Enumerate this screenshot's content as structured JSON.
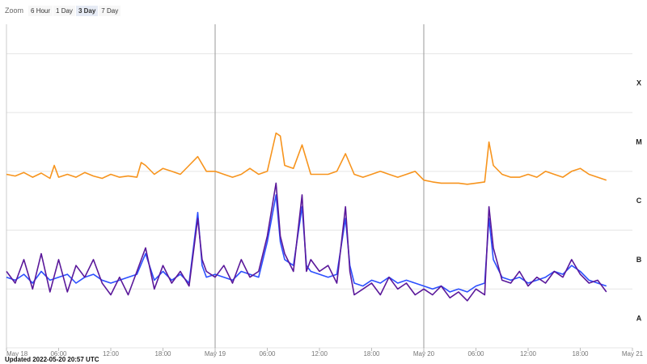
{
  "zoom": {
    "label": "Zoom",
    "options": [
      "6 Hour",
      "1 Day",
      "3 Day",
      "7 Day"
    ],
    "selected": "3 Day"
  },
  "updated_text": "Updated 2022-05-20 20:57 UTC",
  "colors": {
    "orange_series": "#f7941d",
    "blue_series": "#2b4fff",
    "purple_series": "#5a189a",
    "grid": "#e5e5e5",
    "day_divider": "#999999"
  },
  "chart_data": {
    "type": "line",
    "title": "",
    "xlabel": "",
    "ylabel": "",
    "x_range_hours": [
      0,
      72
    ],
    "x_tick_labels": [
      "May 18",
      "06:00",
      "12:00",
      "18:00",
      "May 19",
      "06:00",
      "12:00",
      "18:00",
      "May 20",
      "06:00",
      "12:00",
      "18:00",
      "May 21"
    ],
    "x_tick_hours": [
      0,
      6,
      12,
      18,
      24,
      30,
      36,
      42,
      48,
      54,
      60,
      66,
      72
    ],
    "day_dividers_hours": [
      24,
      48
    ],
    "y_scale": "log",
    "y_class_labels": [
      "X",
      "M",
      "C",
      "B",
      "A"
    ],
    "y_class_levels": [
      -4,
      -5,
      -6,
      -7,
      -8
    ],
    "ylim_log": [
      -9,
      -3.5
    ],
    "series": [
      {
        "key": "orange",
        "values_log": [
          [
            0,
            -6.05
          ],
          [
            1,
            -6.08
          ],
          [
            2,
            -6.02
          ],
          [
            3,
            -6.1
          ],
          [
            4,
            -6.03
          ],
          [
            5,
            -6.12
          ],
          [
            5.5,
            -5.9
          ],
          [
            6,
            -6.1
          ],
          [
            7,
            -6.05
          ],
          [
            8,
            -6.1
          ],
          [
            9,
            -6.02
          ],
          [
            10,
            -6.08
          ],
          [
            11,
            -6.12
          ],
          [
            12,
            -6.05
          ],
          [
            13,
            -6.1
          ],
          [
            14,
            -6.08
          ],
          [
            15,
            -6.1
          ],
          [
            15.5,
            -5.85
          ],
          [
            16,
            -5.9
          ],
          [
            17,
            -6.05
          ],
          [
            18,
            -5.95
          ],
          [
            19,
            -6.0
          ],
          [
            20,
            -6.05
          ],
          [
            21,
            -5.9
          ],
          [
            22,
            -5.75
          ],
          [
            23,
            -6.0
          ],
          [
            24,
            -6.0
          ],
          [
            25,
            -6.05
          ],
          [
            26,
            -6.1
          ],
          [
            27,
            -6.05
          ],
          [
            28,
            -5.95
          ],
          [
            29,
            -6.05
          ],
          [
            30,
            -6.0
          ],
          [
            31,
            -5.35
          ],
          [
            31.5,
            -5.4
          ],
          [
            32,
            -5.9
          ],
          [
            33,
            -5.95
          ],
          [
            34,
            -5.55
          ],
          [
            35,
            -6.05
          ],
          [
            36,
            -6.05
          ],
          [
            37,
            -6.05
          ],
          [
            38,
            -6.0
          ],
          [
            39,
            -5.7
          ],
          [
            40,
            -6.05
          ],
          [
            41,
            -6.1
          ],
          [
            42,
            -6.05
          ],
          [
            43,
            -6.0
          ],
          [
            44,
            -6.05
          ],
          [
            45,
            -6.1
          ],
          [
            46,
            -6.05
          ],
          [
            47,
            -6.0
          ],
          [
            48,
            -6.15
          ],
          [
            49,
            -6.18
          ],
          [
            50,
            -6.2
          ],
          [
            51,
            -6.2
          ],
          [
            52,
            -6.2
          ],
          [
            53,
            -6.22
          ],
          [
            54,
            -6.2
          ],
          [
            55,
            -6.18
          ],
          [
            55.5,
            -5.5
          ],
          [
            56,
            -5.9
          ],
          [
            57,
            -6.05
          ],
          [
            58,
            -6.1
          ],
          [
            59,
            -6.1
          ],
          [
            60,
            -6.05
          ],
          [
            61,
            -6.1
          ],
          [
            62,
            -6.0
          ],
          [
            63,
            -6.05
          ],
          [
            64,
            -6.1
          ],
          [
            65,
            -6.0
          ],
          [
            66,
            -5.95
          ],
          [
            67,
            -6.05
          ],
          [
            68,
            -6.1
          ],
          [
            69,
            -6.15
          ]
        ]
      },
      {
        "key": "blue",
        "values_log": [
          [
            0,
            -7.8
          ],
          [
            1,
            -7.85
          ],
          [
            2,
            -7.75
          ],
          [
            3,
            -7.9
          ],
          [
            4,
            -7.7
          ],
          [
            5,
            -7.85
          ],
          [
            6,
            -7.8
          ],
          [
            7,
            -7.75
          ],
          [
            8,
            -7.9
          ],
          [
            9,
            -7.8
          ],
          [
            10,
            -7.75
          ],
          [
            11,
            -7.85
          ],
          [
            12,
            -7.9
          ],
          [
            13,
            -7.85
          ],
          [
            14,
            -7.8
          ],
          [
            15,
            -7.75
          ],
          [
            16,
            -7.4
          ],
          [
            17,
            -7.85
          ],
          [
            18,
            -7.7
          ],
          [
            19,
            -7.85
          ],
          [
            20,
            -7.75
          ],
          [
            21,
            -7.9
          ],
          [
            22,
            -6.7
          ],
          [
            22.5,
            -7.6
          ],
          [
            23,
            -7.8
          ],
          [
            24,
            -7.75
          ],
          [
            25,
            -7.8
          ],
          [
            26,
            -7.85
          ],
          [
            27,
            -7.7
          ],
          [
            28,
            -7.75
          ],
          [
            29,
            -7.8
          ],
          [
            30,
            -7.2
          ],
          [
            31,
            -6.4
          ],
          [
            31.5,
            -7.2
          ],
          [
            32,
            -7.5
          ],
          [
            33,
            -7.6
          ],
          [
            34,
            -6.6
          ],
          [
            34.5,
            -7.6
          ],
          [
            35,
            -7.7
          ],
          [
            36,
            -7.75
          ],
          [
            37,
            -7.8
          ],
          [
            38,
            -7.75
          ],
          [
            39,
            -6.8
          ],
          [
            39.5,
            -7.6
          ],
          [
            40,
            -7.9
          ],
          [
            41,
            -7.95
          ],
          [
            42,
            -7.85
          ],
          [
            43,
            -7.9
          ],
          [
            44,
            -7.8
          ],
          [
            45,
            -7.9
          ],
          [
            46,
            -7.85
          ],
          [
            47,
            -7.9
          ],
          [
            48,
            -7.95
          ],
          [
            49,
            -8.0
          ],
          [
            50,
            -7.95
          ],
          [
            51,
            -8.05
          ],
          [
            52,
            -8.0
          ],
          [
            53,
            -8.05
          ],
          [
            54,
            -7.95
          ],
          [
            55,
            -7.9
          ],
          [
            55.5,
            -6.8
          ],
          [
            56,
            -7.5
          ],
          [
            57,
            -7.8
          ],
          [
            58,
            -7.85
          ],
          [
            59,
            -7.8
          ],
          [
            60,
            -7.9
          ],
          [
            61,
            -7.85
          ],
          [
            62,
            -7.8
          ],
          [
            63,
            -7.7
          ],
          [
            64,
            -7.75
          ],
          [
            65,
            -7.6
          ],
          [
            66,
            -7.7
          ],
          [
            67,
            -7.85
          ],
          [
            68,
            -7.9
          ],
          [
            69,
            -7.95
          ]
        ]
      },
      {
        "key": "purple",
        "values_log": [
          [
            0,
            -7.7
          ],
          [
            1,
            -7.9
          ],
          [
            2,
            -7.5
          ],
          [
            3,
            -8.0
          ],
          [
            4,
            -7.4
          ],
          [
            5,
            -8.05
          ],
          [
            6,
            -7.5
          ],
          [
            7,
            -8.05
          ],
          [
            8,
            -7.6
          ],
          [
            9,
            -7.8
          ],
          [
            10,
            -7.5
          ],
          [
            11,
            -7.9
          ],
          [
            12,
            -8.1
          ],
          [
            13,
            -7.8
          ],
          [
            14,
            -8.1
          ],
          [
            15,
            -7.7
          ],
          [
            16,
            -7.3
          ],
          [
            17,
            -8.0
          ],
          [
            18,
            -7.6
          ],
          [
            19,
            -7.9
          ],
          [
            20,
            -7.7
          ],
          [
            21,
            -7.95
          ],
          [
            22,
            -6.8
          ],
          [
            22.5,
            -7.5
          ],
          [
            23,
            -7.7
          ],
          [
            24,
            -7.8
          ],
          [
            25,
            -7.6
          ],
          [
            26,
            -7.9
          ],
          [
            27,
            -7.5
          ],
          [
            28,
            -7.8
          ],
          [
            29,
            -7.7
          ],
          [
            30,
            -7.1
          ],
          [
            31,
            -6.2
          ],
          [
            31.5,
            -7.1
          ],
          [
            32,
            -7.4
          ],
          [
            33,
            -7.7
          ],
          [
            34,
            -6.4
          ],
          [
            34.5,
            -7.7
          ],
          [
            35,
            -7.5
          ],
          [
            36,
            -7.7
          ],
          [
            37,
            -7.6
          ],
          [
            38,
            -7.9
          ],
          [
            39,
            -6.6
          ],
          [
            39.5,
            -7.7
          ],
          [
            40,
            -8.1
          ],
          [
            41,
            -8.0
          ],
          [
            42,
            -7.9
          ],
          [
            43,
            -8.1
          ],
          [
            44,
            -7.8
          ],
          [
            45,
            -8.0
          ],
          [
            46,
            -7.9
          ],
          [
            47,
            -8.1
          ],
          [
            48,
            -8.0
          ],
          [
            49,
            -8.1
          ],
          [
            50,
            -7.95
          ],
          [
            51,
            -8.15
          ],
          [
            52,
            -8.05
          ],
          [
            53,
            -8.2
          ],
          [
            54,
            -8.0
          ],
          [
            55,
            -8.1
          ],
          [
            55.5,
            -6.6
          ],
          [
            56,
            -7.3
          ],
          [
            57,
            -7.85
          ],
          [
            58,
            -7.9
          ],
          [
            59,
            -7.7
          ],
          [
            60,
            -7.95
          ],
          [
            61,
            -7.8
          ],
          [
            62,
            -7.9
          ],
          [
            63,
            -7.7
          ],
          [
            64,
            -7.8
          ],
          [
            65,
            -7.5
          ],
          [
            66,
            -7.75
          ],
          [
            67,
            -7.9
          ],
          [
            68,
            -7.85
          ],
          [
            69,
            -8.05
          ]
        ]
      }
    ]
  }
}
